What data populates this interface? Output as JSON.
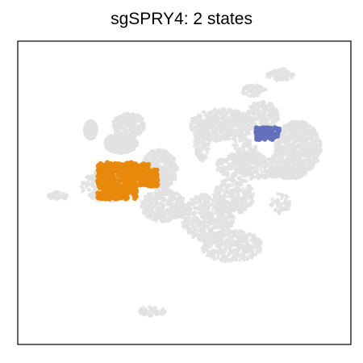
{
  "chart_data": {
    "type": "scatter",
    "title": "sgSPRY4: 2 states",
    "xlabel": "",
    "ylabel": "",
    "grid": false,
    "axes_ticks": false,
    "background_color": "#e2e2e2",
    "series": [
      {
        "color": "#e8890c",
        "center": [
          0.33,
          0.46
        ],
        "spread": [
          0.09,
          0.06
        ]
      },
      {
        "color": "#6470bb",
        "center": [
          0.75,
          0.305
        ],
        "spread": [
          0.035,
          0.02
        ]
      }
    ]
  }
}
